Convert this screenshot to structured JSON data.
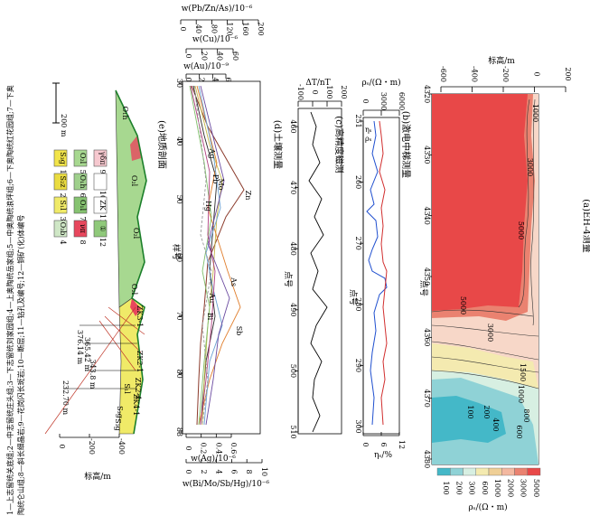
{
  "caption_lines": [
    "1—上志留统关底组;2—中志留统庄头组;3—下志留统刘家园组;4—上奥陶统岳家组;5—中奥陶统浪坪组;6—下奥陶统红花园组;7—下奥",
    "陶统仑山组;8—斜长细晶岩;9—花岗闪长斑岩;10—断层;11—钻孔及编号;12—铜矿(化)体编号"
  ],
  "panels": {
    "a": {
      "title": "(a)EH-4测量",
      "axis_label": "标高/m",
      "y_ticks": [
        "-600",
        "-400",
        "-200",
        "0",
        "200"
      ],
      "x_label": "点号",
      "x_ticks": [
        "4320",
        "4330",
        "4340",
        "4350",
        "4360",
        "4370",
        "4380"
      ],
      "contour_labels": [
        "1000",
        "3000",
        "5000",
        "5000",
        "3000",
        "1500",
        "1000",
        "800",
        "600",
        "400",
        "200",
        "100"
      ],
      "colorbar_ticks": [
        "100",
        "200",
        "300",
        "600",
        "1000",
        "2000",
        "3000",
        "5000"
      ],
      "colorbar_label": "ρₛ/(Ω・m)",
      "colors": [
        "#44b8c8",
        "#8fd2d6",
        "#d7efe2",
        "#f4eab0",
        "#efcf96",
        "#f3b8a0",
        "#ea8270",
        "#e84848"
      ]
    },
    "b": {
      "title": "(b)激电中梯测量",
      "rho_label": "ρₛ/(Ω・m)",
      "rho_ticks": [
        "0",
        "3000",
        "6000"
      ],
      "eta_label": "ηₛ/%",
      "eta_ticks": [
        "0",
        "6",
        "12"
      ],
      "x_label": "点号",
      "x_ticks": [
        "251",
        "260",
        "270",
        "280",
        "290",
        "300"
      ],
      "legend_eta": "ηₛ",
      "legend_rho": "ρₛ"
    },
    "c": {
      "title": "(c)高精度磁测",
      "y_label": "ΔT/nT",
      "y_ticks": [
        "-100",
        "0",
        "100",
        "200"
      ],
      "x_label": "点号",
      "x_ticks": [
        "460",
        "470",
        "480",
        "490",
        "500",
        "510"
      ]
    },
    "d": {
      "title": "(d)土壤测量",
      "top_label_1": "w(Pb/Zn/As)/10⁻⁶",
      "top_ticks_1": [
        "0",
        "40",
        "80",
        "120",
        "160",
        "200"
      ],
      "top_label_2": "w(Cu)/10⁻⁶",
      "top_ticks_2": [
        "0",
        "20",
        "40",
        "60"
      ],
      "top_label_3": "w(Au)/10⁻⁹",
      "top_ticks_3": [
        "0",
        "2",
        "4",
        "6"
      ],
      "x_label": "样号",
      "x_ticks": [
        "30",
        "40",
        "50",
        "60",
        "70",
        "80",
        "88"
      ],
      "bottom_label_1": "w(Ag)/10⁻⁶",
      "bottom_ticks_1": [
        "0",
        "0.2",
        "0.4",
        "0.6"
      ],
      "bottom_label_2": "w(Bi/Mo/Sb/Hg)/10⁻⁶",
      "bottom_ticks_2": [
        "0",
        "2",
        "4",
        "6",
        "8",
        "10"
      ],
      "element_labels": [
        "Zn",
        "Pb",
        "Mo",
        "Ag",
        "Hg",
        "As",
        "Au",
        "Bi",
        "Sb"
      ]
    },
    "e": {
      "title": "(e)地质剖面",
      "axis_label": "标高/m",
      "axis_ticks": [
        "0",
        "-200",
        "-400"
      ],
      "scale_bar": "200 m",
      "unit_labels": [
        "O₁h",
        "O₂l",
        "O₂l",
        "O₂l",
        "S₁l",
        "S₃g",
        "S₃g"
      ],
      "drill_labels": [
        "ZK3-1",
        "ZK2-1",
        "ZK2-4",
        "ZK4-1"
      ],
      "depth_labels": [
        "376.14 m",
        "365.42 m",
        "343.8 m",
        "232.70 m"
      ]
    }
  },
  "legend": [
    {
      "num": "1",
      "code": "S₃g",
      "color": "#f2e44a"
    },
    {
      "num": "2",
      "code": "S₂z",
      "color": "#eadc40"
    },
    {
      "num": "3",
      "code": "S₁l",
      "color": "#f0ea68"
    },
    {
      "num": "4",
      "code": "O₃b",
      "color": "#cfe7c6"
    },
    {
      "num": "5",
      "code": "O₂l",
      "color": "#a7d890"
    },
    {
      "num": "6",
      "code": "O₁h",
      "color": "#9fd08c"
    },
    {
      "num": "7",
      "code": "O₁l",
      "color": "#86c371"
    },
    {
      "num": "8",
      "code": "νπ",
      "color": "#e8475d"
    },
    {
      "num": "9",
      "code": "γδπ",
      "color": "#f6c8cf"
    },
    {
      "num": "10",
      "code": "",
      "color": "#ffffff"
    },
    {
      "num": "11",
      "code": "ZK",
      "color": "#ffffff"
    },
    {
      "num": "12",
      "code": "①",
      "color": "#8fc97a"
    }
  ]
}
